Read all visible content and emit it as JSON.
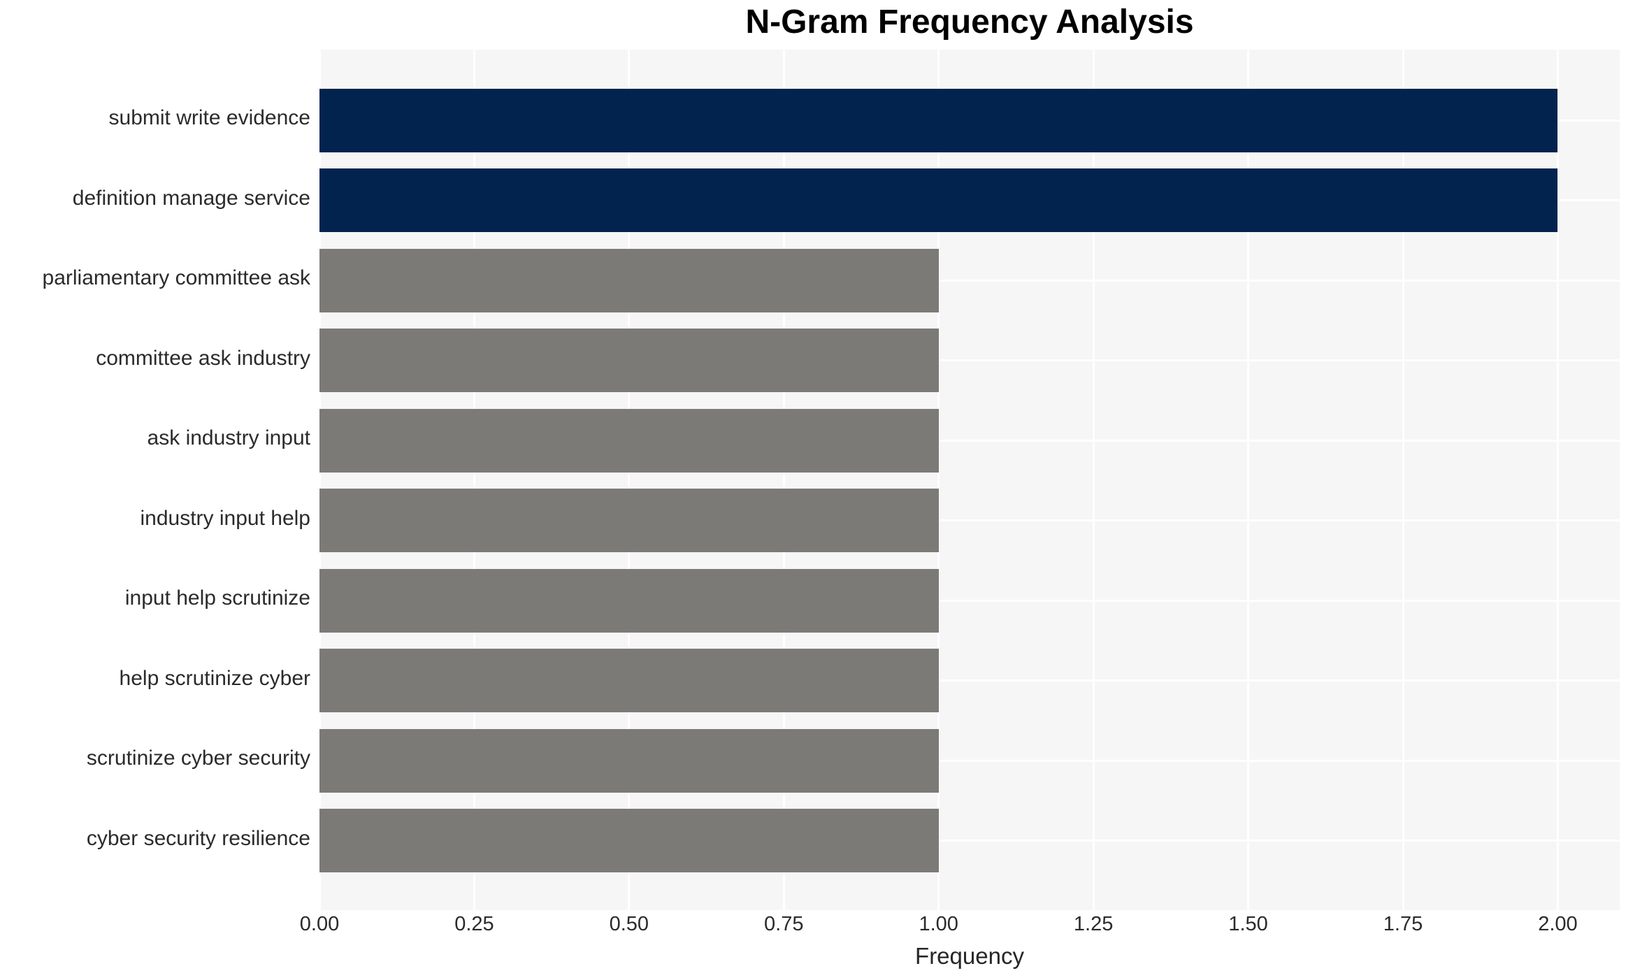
{
  "figure": {
    "background_color": "#ffffff",
    "plot_background_color": "#f7f6f6",
    "grid_color": "#ffffff",
    "label_text_color": "#2b2b2b"
  },
  "chart_data": {
    "type": "bar",
    "orientation": "horizontal",
    "title": "N-Gram Frequency Analysis",
    "xlabel": "Frequency",
    "ylabel": "",
    "categories": [
      "submit write evidence",
      "definition manage service",
      "parliamentary committee ask",
      "committee ask industry",
      "ask industry input",
      "industry input help",
      "input help scrutinize",
      "help scrutinize cyber",
      "scrutinize cyber security",
      "cyber security resilience"
    ],
    "values": [
      2,
      2,
      1,
      1,
      1,
      1,
      1,
      1,
      1,
      1
    ],
    "bar_colors": [
      "#02234e",
      "#02234e",
      "#7b7a76",
      "#7b7a76",
      "#7b7a76",
      "#7b7a76",
      "#7b7a76",
      "#7b7a76",
      "#7b7a76",
      "#7b7a76"
    ],
    "highlight_color": "#02234e",
    "default_color": "#7b7a76",
    "xlim": [
      0,
      2.1
    ],
    "x_tick_values": [
      0,
      0.25,
      0.5,
      0.75,
      1.0,
      1.25,
      1.5,
      1.75,
      2.0
    ],
    "x_tick_labels": [
      "0.00",
      "0.25",
      "0.50",
      "0.75",
      "1.00",
      "1.25",
      "1.50",
      "1.75",
      "2.00"
    ],
    "grid": true,
    "legend": false
  }
}
